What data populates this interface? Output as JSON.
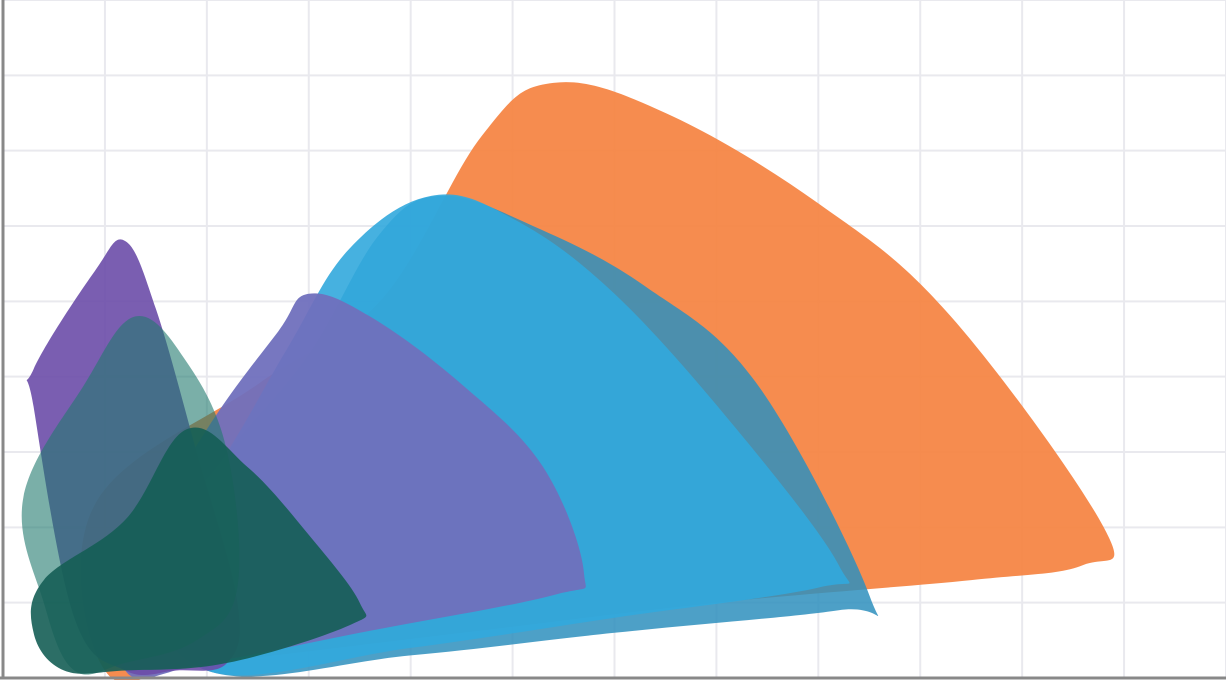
{
  "chart_data": {
    "type": "area",
    "title": "",
    "xlabel": "",
    "ylabel": "",
    "grid": true,
    "legend": "none",
    "xlim": [
      0,
      12
    ],
    "ylim": [
      0,
      9
    ],
    "series": [
      {
        "color": "#f58240",
        "opacity": 0.92,
        "points": [
          [
            0.9,
            2.3
          ],
          [
            2.5,
            3.9
          ],
          [
            3.7,
            5.0
          ],
          [
            4.7,
            7.2
          ],
          [
            5.4,
            7.9
          ],
          [
            6.5,
            7.5
          ],
          [
            8.0,
            6.3
          ],
          [
            9.3,
            4.8
          ],
          [
            10.8,
            2.0
          ],
          [
            10.6,
            1.5
          ],
          [
            9.5,
            1.3
          ],
          [
            7.0,
            1.0
          ],
          [
            4.5,
            0.6
          ],
          [
            2.0,
            0.2
          ],
          [
            1.0,
            0.1
          ]
        ]
      },
      {
        "color": "#2e8fbd",
        "opacity": 0.85,
        "points": [
          [
            1.4,
            1.6
          ],
          [
            2.2,
            3.0
          ],
          [
            3.0,
            4.3
          ],
          [
            3.7,
            5.9
          ],
          [
            4.3,
            6.4
          ],
          [
            5.2,
            6.0
          ],
          [
            6.3,
            5.2
          ],
          [
            7.4,
            3.9
          ],
          [
            8.5,
            1.1
          ],
          [
            8.2,
            0.9
          ],
          [
            6.0,
            0.6
          ],
          [
            4.0,
            0.3
          ],
          [
            2.0,
            0.1
          ]
        ]
      },
      {
        "color": "#32a9dd",
        "opacity": 0.9,
        "points": [
          [
            1.5,
            1.6
          ],
          [
            2.2,
            3.0
          ],
          [
            2.8,
            4.4
          ],
          [
            3.4,
            5.7
          ],
          [
            4.2,
            6.4
          ],
          [
            5.0,
            6.1
          ],
          [
            6.0,
            5.1
          ],
          [
            7.2,
            3.3
          ],
          [
            8.2,
            1.5
          ],
          [
            8.0,
            1.2
          ],
          [
            6.0,
            0.8
          ],
          [
            4.0,
            0.4
          ],
          [
            2.0,
            0.1
          ]
        ]
      },
      {
        "color": "#7070bd",
        "opacity": 0.95,
        "points": [
          [
            1.3,
            1.6
          ],
          [
            2.0,
            3.3
          ],
          [
            2.7,
            4.6
          ],
          [
            3.0,
            5.1
          ],
          [
            3.6,
            4.8
          ],
          [
            4.5,
            3.9
          ],
          [
            5.3,
            2.8
          ],
          [
            5.7,
            1.4
          ],
          [
            5.4,
            1.1
          ],
          [
            3.5,
            0.6
          ],
          [
            2.0,
            0.2
          ],
          [
            1.2,
            0.1
          ]
        ]
      },
      {
        "color": "#6c4da8",
        "opacity": 0.9,
        "points": [
          [
            0.3,
            4.1
          ],
          [
            0.9,
            5.4
          ],
          [
            1.2,
            5.8
          ],
          [
            1.5,
            4.9
          ],
          [
            1.9,
            3.0
          ],
          [
            2.3,
            1.0
          ],
          [
            2.2,
            0.2
          ],
          [
            1.7,
            0.1
          ],
          [
            1.2,
            0.1
          ],
          [
            0.7,
            0.8
          ],
          [
            0.3,
            3.6
          ]
        ]
      },
      {
        "color": "#227a6e",
        "opacity": 0.6,
        "points": [
          [
            0.2,
            2.4
          ],
          [
            0.8,
            3.9
          ],
          [
            1.3,
            4.8
          ],
          [
            1.8,
            4.2
          ],
          [
            2.2,
            3.0
          ],
          [
            2.3,
            1.2
          ],
          [
            1.9,
            0.5
          ],
          [
            1.2,
            0.2
          ],
          [
            0.7,
            0.1
          ],
          [
            0.4,
            1.0
          ]
        ]
      },
      {
        "color": "#155e55",
        "opacity": 0.9,
        "points": [
          [
            0.4,
            1.3
          ],
          [
            1.2,
            2.1
          ],
          [
            1.8,
            3.3
          ],
          [
            2.4,
            2.8
          ],
          [
            3.0,
            1.9
          ],
          [
            3.5,
            1.0
          ],
          [
            3.4,
            0.7
          ],
          [
            2.2,
            0.2
          ],
          [
            1.2,
            0.1
          ],
          [
            0.6,
            0.1
          ],
          [
            0.3,
            0.6
          ]
        ]
      }
    ]
  }
}
